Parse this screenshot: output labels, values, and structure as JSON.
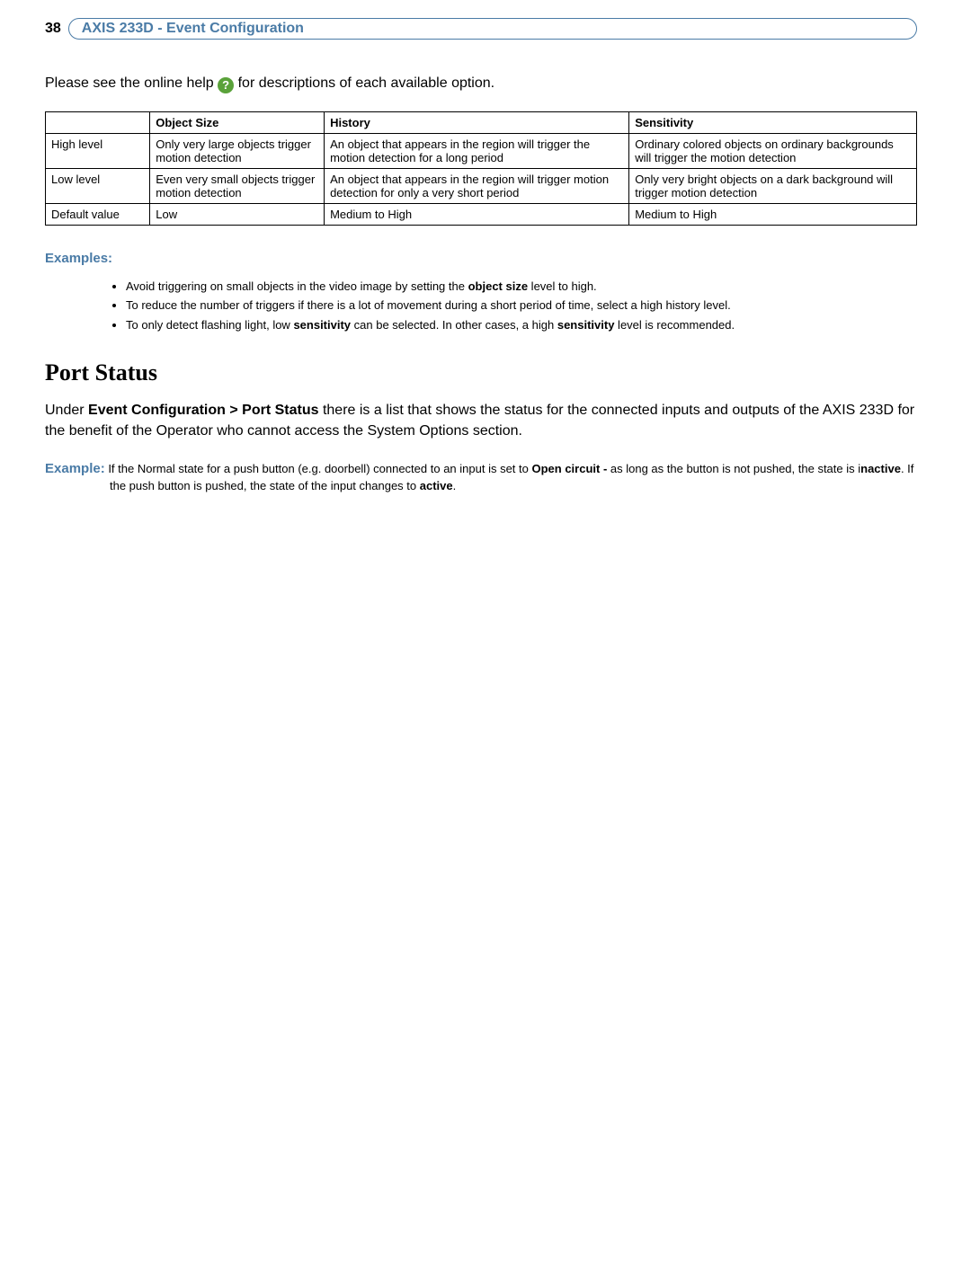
{
  "page_number": "38",
  "header_title": "AXIS 233D - Event Configuration",
  "intro": {
    "prefix": "Please see the online help ",
    "help_glyph": "?",
    "suffix": " for descriptions of each available option."
  },
  "table": {
    "columns": [
      "",
      "Object Size",
      "History",
      "Sensitivity"
    ],
    "col_widths_pct": [
      12,
      20,
      35,
      33
    ],
    "rows": [
      [
        "High level",
        "Only very large objects trigger motion detection",
        "An object that appears in the region will trigger the motion detection for a long period",
        "Ordinary colored objects on ordinary backgrounds will trigger the motion detection"
      ],
      [
        "Low level",
        "Even very small objects trigger motion detection",
        "An object that appears in the region will trigger motion detection for only a very short period",
        "Only very bright objects on a dark background will trigger motion detection"
      ],
      [
        "Default value",
        "Low",
        "Medium to High",
        "Medium to High"
      ]
    ],
    "border_color": "#000000",
    "font_size_pt": 10
  },
  "examples": {
    "label": "Examples:",
    "items": [
      {
        "pre": "Avoid triggering on small objects in the video image by setting the ",
        "bold": "object size",
        "post": " level to high."
      },
      {
        "pre": "To reduce the number of triggers if there is a lot of movement during a short period of time, select a high history level.",
        "bold": "",
        "post": ""
      },
      {
        "pre": "To only detect flashing light, low ",
        "bold": "sensitivity",
        "post": " can be selected. In other cases, a high ",
        "bold2": "sensitivity",
        "post2": " level is recommended."
      }
    ]
  },
  "section": {
    "heading": "Port Status",
    "body_pre": "Under ",
    "body_bold": "Event Configuration > Port Status",
    "body_post": " there is a list that shows the status for the connected inputs and outputs of the AXIS 233D for the benefit of the Operator who cannot access the System Options section."
  },
  "example_block": {
    "lead": "Example:",
    "t1": " If the Normal state for a push button (e.g. doorbell) connected to an input is set to ",
    "b1": "Open circuit -",
    "t2": " as long as the button is not pushed, the state is i",
    "b2": "nactive",
    "t3": ". If the push button is pushed, the state of the input changes to ",
    "b3": "active",
    "t4": "."
  },
  "colors": {
    "accent": "#4a7ba6",
    "help_bg": "#5aa23a",
    "text": "#000000",
    "background": "#ffffff"
  }
}
